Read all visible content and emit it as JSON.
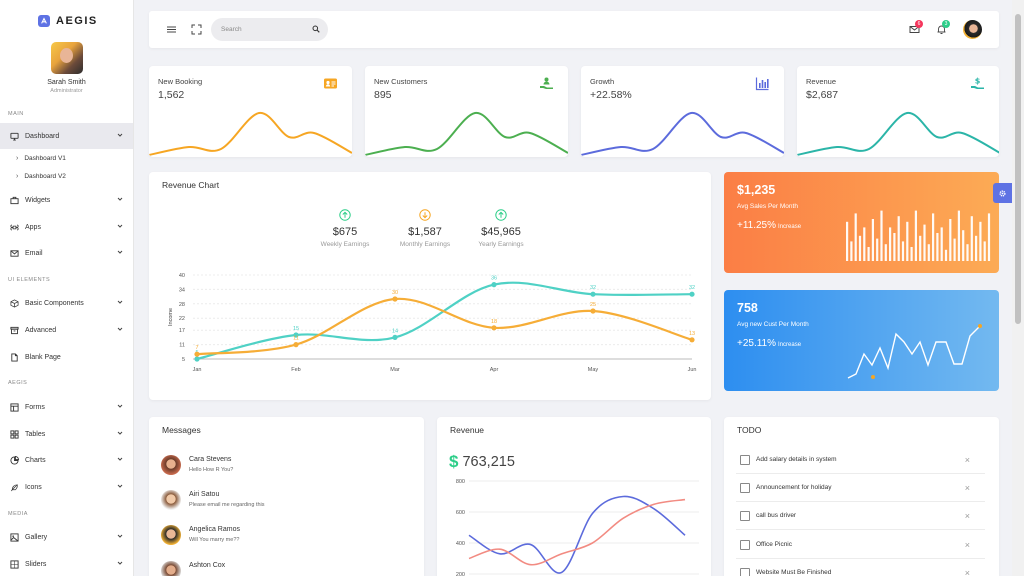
{
  "brand": {
    "name": "AEGIS"
  },
  "profile": {
    "name": "Sarah Smith",
    "role": "Administrator"
  },
  "sidebar": {
    "sections": [
      "MAIN",
      "UI ELEMENTS",
      "AEGIS",
      "MEDIA"
    ],
    "items": [
      {
        "label": "Dashboard",
        "icon": "monitor-icon",
        "active": true
      },
      {
        "label": "Widgets",
        "icon": "briefcase-icon"
      },
      {
        "label": "Apps",
        "icon": "command-icon"
      },
      {
        "label": "Email",
        "icon": "mail-icon"
      },
      {
        "label": "Basic Components",
        "icon": "box-icon"
      },
      {
        "label": "Advanced",
        "icon": "archive-icon"
      },
      {
        "label": "Blank Page",
        "icon": "file-icon"
      },
      {
        "label": "Forms",
        "icon": "layout-icon"
      },
      {
        "label": "Tables",
        "icon": "grid-icon"
      },
      {
        "label": "Charts",
        "icon": "pie-chart-icon"
      },
      {
        "label": "Icons",
        "icon": "feather-icon"
      },
      {
        "label": "Gallery",
        "icon": "image-icon"
      },
      {
        "label": "Sliders",
        "icon": "sliders-icon"
      }
    ],
    "sub_items": [
      "Dashboard V1",
      "Dashboard V2"
    ]
  },
  "topbar": {
    "search_placeholder": "Search",
    "mail_badge": "6",
    "bell_badge": "3"
  },
  "stats": [
    {
      "title": "New Booking",
      "value": "1,562",
      "color": "#f6a623",
      "icon": "id-card-icon"
    },
    {
      "title": "New Customers",
      "value": "895",
      "color": "#4caf50",
      "icon": "users-hand-icon"
    },
    {
      "title": "Growth",
      "value": "+22.58%",
      "color": "#5c6bdc",
      "icon": "bar-chart-icon"
    },
    {
      "title": "Revenue",
      "value": "$2,687",
      "color": "#2bb5a8",
      "icon": "hand-dollar-icon"
    }
  ],
  "revenue_chart": {
    "title": "Revenue Chart",
    "earnings": [
      {
        "value": "$675",
        "label": "Weekly Earnings",
        "dir": "up",
        "color": "#2dce89"
      },
      {
        "value": "$1,587",
        "label": "Monthly Earnings",
        "dir": "down",
        "color": "#f6a623"
      },
      {
        "value": "$45,965",
        "label": "Yearly Earnings",
        "dir": "up",
        "color": "#2dce89"
      }
    ]
  },
  "chart_data": [
    {
      "type": "line",
      "categories": [
        "Jan",
        "Feb",
        "Mar",
        "Apr",
        "May",
        "Jun"
      ],
      "ylabel": "Income",
      "yticks": [
        5,
        11,
        17,
        22,
        28,
        34,
        40
      ],
      "ylim": [
        5,
        40
      ],
      "grid": true,
      "series": [
        {
          "values": [
            5,
            15,
            14,
            36,
            32,
            32
          ],
          "color": "#4fd1c5"
        },
        {
          "values": [
            7,
            11,
            30,
            18,
            25,
            13
          ],
          "color": "#f6ad37"
        }
      ]
    },
    {
      "type": "line",
      "yticks": [
        200,
        400,
        600,
        800
      ],
      "ylim": [
        200,
        800
      ],
      "grid": true,
      "series": [
        {
          "values": [
            450,
            330,
            390,
            210,
            590,
            700,
            620,
            450
          ],
          "color": "#5c6bdc"
        },
        {
          "values": [
            300,
            360,
            260,
            330,
            400,
            560,
            650,
            680
          ],
          "color": "#f28b82"
        }
      ]
    }
  ],
  "gradient_cards": [
    {
      "value": "$1,235",
      "label": "Avg Sales Per Month",
      "pct": "+11.25%",
      "inc": "Increase",
      "bars": [
        0.7,
        0.35,
        0.85,
        0.45,
        0.6,
        0.25,
        0.75,
        0.4,
        0.9,
        0.3,
        0.6,
        0.5,
        0.8,
        0.35,
        0.7,
        0.25,
        0.9,
        0.45,
        0.65,
        0.3,
        0.85,
        0.5,
        0.6,
        0.2,
        0.75,
        0.4,
        0.9,
        0.55,
        0.3,
        0.8,
        0.45,
        0.7,
        0.35,
        0.85
      ]
    },
    {
      "value": "758",
      "label": "Avg new Cust Per Month",
      "pct": "+25.11%",
      "inc": "Increase"
    }
  ],
  "messages": {
    "title": "Messages",
    "items": [
      {
        "name": "Cara Stevens",
        "text": "Hello How R You?"
      },
      {
        "name": "Airi Satou",
        "text": "Please email me regarding this"
      },
      {
        "name": "Angelica Ramos",
        "text": "Will You marry me??"
      },
      {
        "name": "Ashton Cox",
        "text": ""
      }
    ]
  },
  "revenue_card": {
    "title": "Revenue",
    "total": "763,215"
  },
  "todo": {
    "title": "TODO",
    "items": [
      "Add salary details in system",
      "Announcement for holiday",
      "call bus driver",
      "Office Picnic",
      "Website Must Be Finished"
    ]
  }
}
